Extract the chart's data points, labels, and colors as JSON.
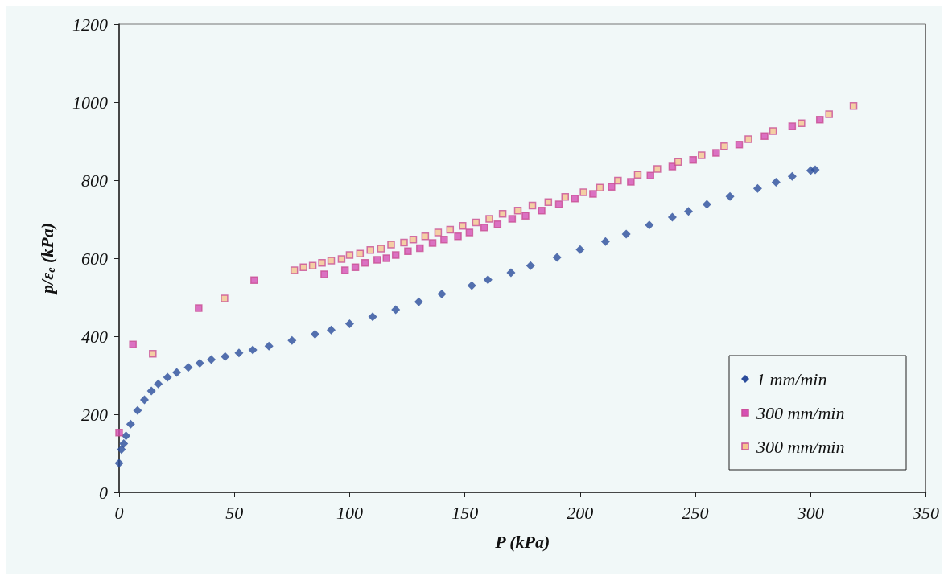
{
  "chart_data": {
    "type": "scatter",
    "xlabel": "P (kPa)",
    "ylabel": "p/ε$_{e}$ (kPa)",
    "xlim": [
      0,
      350
    ],
    "xticks": [
      0,
      50,
      100,
      150,
      200,
      250,
      300,
      350
    ],
    "ylim": [
      0,
      1200
    ],
    "yticks": [
      0,
      200,
      400,
      600,
      800,
      1000,
      1200
    ],
    "grid": false,
    "legend": "bottom right",
    "series": [
      {
        "name": "1 mm/min",
        "color": "#2b4c9b",
        "marker": "diamond",
        "x": [
          0,
          1,
          2,
          3,
          5,
          8,
          11,
          14,
          17,
          21,
          25,
          30,
          35,
          40,
          46,
          52,
          58,
          65,
          75,
          85,
          92,
          100,
          110,
          120,
          130,
          140,
          153,
          160,
          170,
          178.5,
          190,
          200,
          211,
          220,
          230,
          240,
          247,
          255,
          265,
          277,
          285,
          292,
          300,
          302
        ],
        "values": [
          75,
          110,
          125,
          145,
          175,
          210,
          237,
          260,
          278,
          295,
          307,
          320,
          331,
          340,
          348,
          357,
          365,
          375,
          389,
          405,
          416,
          432,
          450,
          468,
          488,
          508,
          530,
          545,
          563,
          581,
          602,
          622,
          643,
          662,
          685,
          705,
          720,
          738,
          758,
          779,
          795,
          810,
          825,
          827
        ]
      },
      {
        "name": "300 mm/min",
        "color": "#d64fb4",
        "marker": "square",
        "x": [
          0,
          6,
          34.5,
          58.6,
          89,
          98,
          102.5,
          106.7,
          112,
          116,
          120,
          125.3,
          130.5,
          136,
          141,
          147,
          152,
          158.4,
          164.2,
          170.5,
          176.3,
          183.3,
          190.8,
          197.7,
          205.6,
          213.6,
          222,
          230.5,
          240,
          249,
          259,
          269,
          280,
          292,
          304
        ],
        "values": [
          153,
          379,
          472,
          544,
          559,
          569,
          577,
          588,
          596,
          600,
          608,
          618,
          626,
          639,
          648,
          656,
          666,
          679,
          687,
          701,
          709,
          722,
          738,
          753,
          765,
          783,
          796,
          812,
          835,
          852,
          870,
          891,
          913,
          938,
          955
        ]
      },
      {
        "name": "300 mm/min",
        "color": "#f5c48f",
        "marker": "square",
        "x": [
          14.6,
          45.7,
          76,
          80,
          84,
          88,
          92,
          96.5,
          100,
          104.5,
          109,
          113.6,
          118,
          123.6,
          127.6,
          132.8,
          138.4,
          143.6,
          149,
          154.8,
          160.6,
          166.4,
          173,
          179.3,
          186.2,
          193.5,
          201.5,
          208.6,
          216.4,
          225,
          233.5,
          242.5,
          252.7,
          262.5,
          273,
          283.7,
          296,
          308,
          318.6
        ],
        "values": [
          355,
          497,
          569,
          577,
          581,
          588,
          594,
          598,
          608,
          612,
          621,
          625,
          635,
          640,
          648,
          656,
          666,
          673,
          683,
          692,
          701,
          714,
          722,
          735,
          744,
          757,
          769,
          781,
          799,
          814,
          829,
          847,
          864,
          887,
          905,
          926,
          946,
          969,
          990
        ]
      }
    ]
  }
}
